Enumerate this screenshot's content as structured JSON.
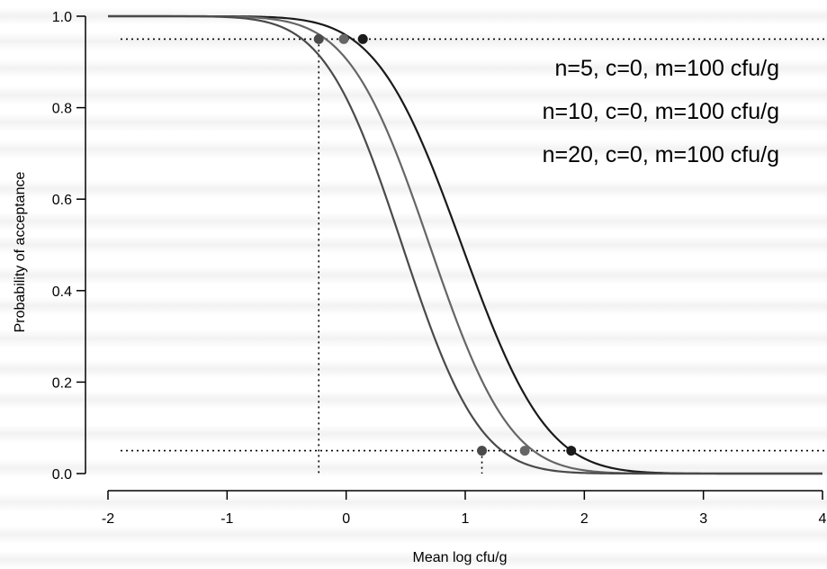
{
  "chart_data": {
    "type": "line",
    "xlabel": "Mean log cfu/g",
    "ylabel": "Probability of acceptance",
    "xlim": [
      -2,
      4
    ],
    "ylim": [
      0,
      1
    ],
    "xticks": [
      "-2",
      "-1",
      "0",
      "1",
      "2",
      "3",
      "4"
    ],
    "yticks": [
      "0.0",
      "0.2",
      "0.4",
      "0.6",
      "0.8",
      "1.0"
    ],
    "grid": false,
    "legend_position": "top-right",
    "reference_levels": [
      0.95,
      0.05
    ],
    "reference_marks": [
      {
        "level": 0.95,
        "x": -0.23
      },
      {
        "level": 0.05,
        "x": 1.14
      }
    ],
    "series": [
      {
        "name": "n=5, c=0, m=100 cfu/g",
        "color": "#1a1a1a",
        "mu": 0.97,
        "sigma": 0.56,
        "markers": [
          [
            0.14,
            0.95
          ],
          [
            1.89,
            0.05
          ]
        ]
      },
      {
        "name": "n=10, c=0, m=100 cfu/g",
        "color": "#666666",
        "mu": 0.7,
        "sigma": 0.53,
        "markers": [
          -0.02,
          1.5
        ]
      },
      {
        "name": "n=20, c=0, m=100 cfu/g",
        "color": "#4a4a4a",
        "mu": 0.47,
        "sigma": 0.51,
        "markers": [
          -0.23,
          1.14
        ]
      }
    ]
  }
}
